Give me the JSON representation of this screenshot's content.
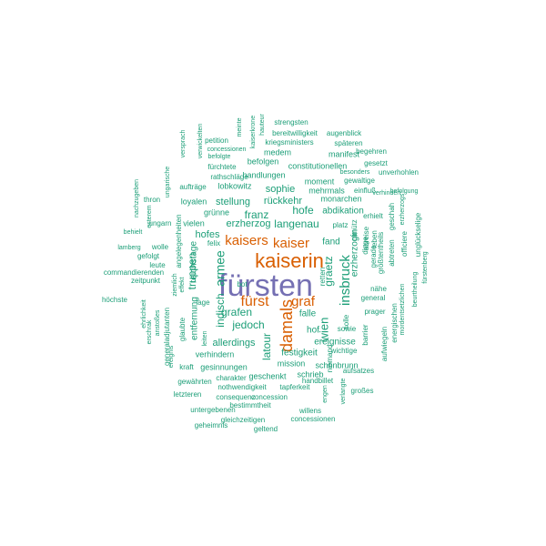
{
  "colors": {
    "teal": "#1b9e77",
    "orange": "#d95f02",
    "purple": "#7570b3"
  },
  "words": [
    {
      "text": "fürsten",
      "color": "purple"
    },
    {
      "text": "kaiserin",
      "color": "orange"
    },
    {
      "text": "damals",
      "color": "orange"
    },
    {
      "text": "fürst",
      "color": "orange"
    },
    {
      "text": "kaisers",
      "color": "orange"
    },
    {
      "text": "kaiser",
      "color": "orange"
    },
    {
      "text": "graf",
      "color": "orange"
    },
    {
      "text": "armee",
      "color": "teal"
    },
    {
      "text": "insbruck",
      "color": "teal"
    },
    {
      "text": "wien",
      "color": "teal"
    },
    {
      "text": "truppen",
      "color": "teal"
    },
    {
      "text": "indisch",
      "color": "teal"
    },
    {
      "text": "grafen",
      "color": "teal"
    },
    {
      "text": "jedoch",
      "color": "teal"
    },
    {
      "text": "latour",
      "color": "teal"
    },
    {
      "text": "graetz",
      "color": "teal"
    },
    {
      "text": "langenau",
      "color": "teal"
    },
    {
      "text": "hofe",
      "color": "teal"
    },
    {
      "text": "franz",
      "color": "teal"
    },
    {
      "text": "hofes",
      "color": "teal"
    },
    {
      "text": "erzherzog",
      "color": "teal"
    },
    {
      "text": "stellung",
      "color": "teal"
    },
    {
      "text": "rückkehr",
      "color": "teal"
    },
    {
      "text": "sophie",
      "color": "teal"
    },
    {
      "text": "allerdings",
      "color": "teal"
    },
    {
      "text": "falle",
      "color": "teal"
    },
    {
      "text": "hof",
      "color": "teal"
    },
    {
      "text": "festigkeit",
      "color": "teal"
    },
    {
      "text": "ereignisse",
      "color": "teal"
    },
    {
      "text": "fand",
      "color": "teal"
    },
    {
      "text": "abdikation",
      "color": "teal"
    },
    {
      "text": "erzherzogin",
      "color": "teal"
    },
    {
      "text": "reichstage",
      "color": "teal"
    },
    {
      "text": "entfernung",
      "color": "teal"
    },
    {
      "text": "verhindern",
      "color": "teal"
    },
    {
      "text": "gesinnungen",
      "color": "teal"
    },
    {
      "text": "geschenkt",
      "color": "teal"
    },
    {
      "text": "schrieb",
      "color": "teal"
    },
    {
      "text": "mission",
      "color": "teal"
    },
    {
      "text": "schönbrunn",
      "color": "teal"
    },
    {
      "text": "vielen",
      "color": "teal"
    },
    {
      "text": "grünne",
      "color": "teal"
    },
    {
      "text": "loyalen",
      "color": "teal"
    },
    {
      "text": "lobkowitz",
      "color": "teal"
    },
    {
      "text": "handlungen",
      "color": "teal"
    },
    {
      "text": "befolgen",
      "color": "teal"
    },
    {
      "text": "constitutionellen",
      "color": "teal"
    },
    {
      "text": "moment",
      "color": "teal"
    },
    {
      "text": "mehrmals",
      "color": "teal"
    },
    {
      "text": "gewaltige",
      "color": "teal"
    },
    {
      "text": "monarchen",
      "color": "teal"
    },
    {
      "text": "manifest",
      "color": "teal"
    },
    {
      "text": "medem",
      "color": "teal"
    },
    {
      "text": "kriegsministers",
      "color": "teal"
    },
    {
      "text": "späteren",
      "color": "teal"
    },
    {
      "text": "bereitwilligkeit",
      "color": "teal"
    },
    {
      "text": "augenblick",
      "color": "teal"
    },
    {
      "text": "strengsten",
      "color": "teal"
    },
    {
      "text": "kaiserkrone",
      "color": "teal"
    },
    {
      "text": "hauteur",
      "color": "teal"
    },
    {
      "text": "meinte",
      "color": "teal"
    },
    {
      "text": "verwickelten",
      "color": "teal"
    },
    {
      "text": "petition",
      "color": "teal"
    },
    {
      "text": "concessionen",
      "color": "teal"
    },
    {
      "text": "befolgte",
      "color": "teal"
    },
    {
      "text": "fürchtete",
      "color": "teal"
    },
    {
      "text": "rathschläge",
      "color": "teal"
    },
    {
      "text": "aufträge",
      "color": "teal"
    },
    {
      "text": "besonders",
      "color": "teal"
    },
    {
      "text": "begehren",
      "color": "teal"
    },
    {
      "text": "gesetzt",
      "color": "teal"
    },
    {
      "text": "unverhohlen",
      "color": "teal"
    },
    {
      "text": "befolgung",
      "color": "teal"
    },
    {
      "text": "verhindert",
      "color": "teal"
    },
    {
      "text": "einfluß",
      "color": "teal"
    },
    {
      "text": "versprach",
      "color": "teal"
    },
    {
      "text": "ungarische",
      "color": "teal"
    },
    {
      "text": "thron",
      "color": "teal"
    },
    {
      "text": "nachzugeben",
      "color": "teal"
    },
    {
      "text": "esterem",
      "color": "teal"
    },
    {
      "text": "angelegenheiten",
      "color": "teal"
    },
    {
      "text": "ungarn",
      "color": "teal"
    },
    {
      "text": "behielt",
      "color": "teal"
    },
    {
      "text": "lamberg",
      "color": "teal"
    },
    {
      "text": "wolle",
      "color": "teal"
    },
    {
      "text": "felix",
      "color": "teal"
    },
    {
      "text": "gefolgt",
      "color": "teal"
    },
    {
      "text": "leute",
      "color": "teal"
    },
    {
      "text": "commandierenden",
      "color": "teal"
    },
    {
      "text": "zeitpunkt",
      "color": "teal"
    },
    {
      "text": "höchste",
      "color": "teal"
    },
    {
      "text": "ehrlichkeit",
      "color": "teal"
    },
    {
      "text": "erschrak",
      "color": "teal"
    },
    {
      "text": "anstoßes",
      "color": "teal"
    },
    {
      "text": "generaladjutanten",
      "color": "teal"
    },
    {
      "text": "ziemlich",
      "color": "teal"
    },
    {
      "text": "effekt",
      "color": "teal"
    },
    {
      "text": "glaubte",
      "color": "teal"
    },
    {
      "text": "lage",
      "color": "teal"
    },
    {
      "text": "ereignis",
      "color": "teal"
    },
    {
      "text": "kraft",
      "color": "teal"
    },
    {
      "text": "leiten",
      "color": "teal"
    },
    {
      "text": "bot",
      "color": "teal"
    },
    {
      "text": "gewährten",
      "color": "teal"
    },
    {
      "text": "charakter",
      "color": "teal"
    },
    {
      "text": "nothwendigkeit",
      "color": "teal"
    },
    {
      "text": "letzteren",
      "color": "teal"
    },
    {
      "text": "consequenz",
      "color": "teal"
    },
    {
      "text": "concession",
      "color": "teal"
    },
    {
      "text": "tapferkeit",
      "color": "teal"
    },
    {
      "text": "handbillet",
      "color": "teal"
    },
    {
      "text": "aufsatzes",
      "color": "teal"
    },
    {
      "text": "wichtige",
      "color": "teal"
    },
    {
      "text": "niemand",
      "color": "teal"
    },
    {
      "text": "sowie",
      "color": "teal"
    },
    {
      "text": "prager",
      "color": "teal"
    },
    {
      "text": "general",
      "color": "teal"
    },
    {
      "text": "nähe",
      "color": "teal"
    },
    {
      "text": "platz",
      "color": "teal"
    },
    {
      "text": "erhielt",
      "color": "teal"
    },
    {
      "text": "dinge",
      "color": "teal"
    },
    {
      "text": "abreise",
      "color": "teal"
    },
    {
      "text": "olmütz",
      "color": "teal"
    },
    {
      "text": "solle",
      "color": "teal"
    },
    {
      "text": "retten",
      "color": "teal"
    },
    {
      "text": "abtreten",
      "color": "teal"
    },
    {
      "text": "größtentheils",
      "color": "teal"
    },
    {
      "text": "gerade",
      "color": "teal"
    },
    {
      "text": "leben",
      "color": "teal"
    },
    {
      "text": "geschah",
      "color": "teal"
    },
    {
      "text": "erzherzogs",
      "color": "teal"
    },
    {
      "text": "unglückselige",
      "color": "teal"
    },
    {
      "text": "officiere",
      "color": "teal"
    },
    {
      "text": "mordentsetzlichen",
      "color": "teal"
    },
    {
      "text": "energischen",
      "color": "teal"
    },
    {
      "text": "beurtheilung",
      "color": "teal"
    },
    {
      "text": "fürstenberg",
      "color": "teal"
    },
    {
      "text": "aufwiegeln",
      "color": "teal"
    },
    {
      "text": "barrier",
      "color": "teal"
    },
    {
      "text": "großes",
      "color": "teal"
    },
    {
      "text": "engen",
      "color": "teal"
    },
    {
      "text": "verlangte",
      "color": "teal"
    },
    {
      "text": "bestimmtheit",
      "color": "teal"
    },
    {
      "text": "untergebenen",
      "color": "teal"
    },
    {
      "text": "willens",
      "color": "teal"
    },
    {
      "text": "gleichzeitigen",
      "color": "teal"
    },
    {
      "text": "concessionen",
      "color": "teal"
    },
    {
      "text": "geheimnis",
      "color": "teal"
    },
    {
      "text": "geltend",
      "color": "teal"
    }
  ]
}
